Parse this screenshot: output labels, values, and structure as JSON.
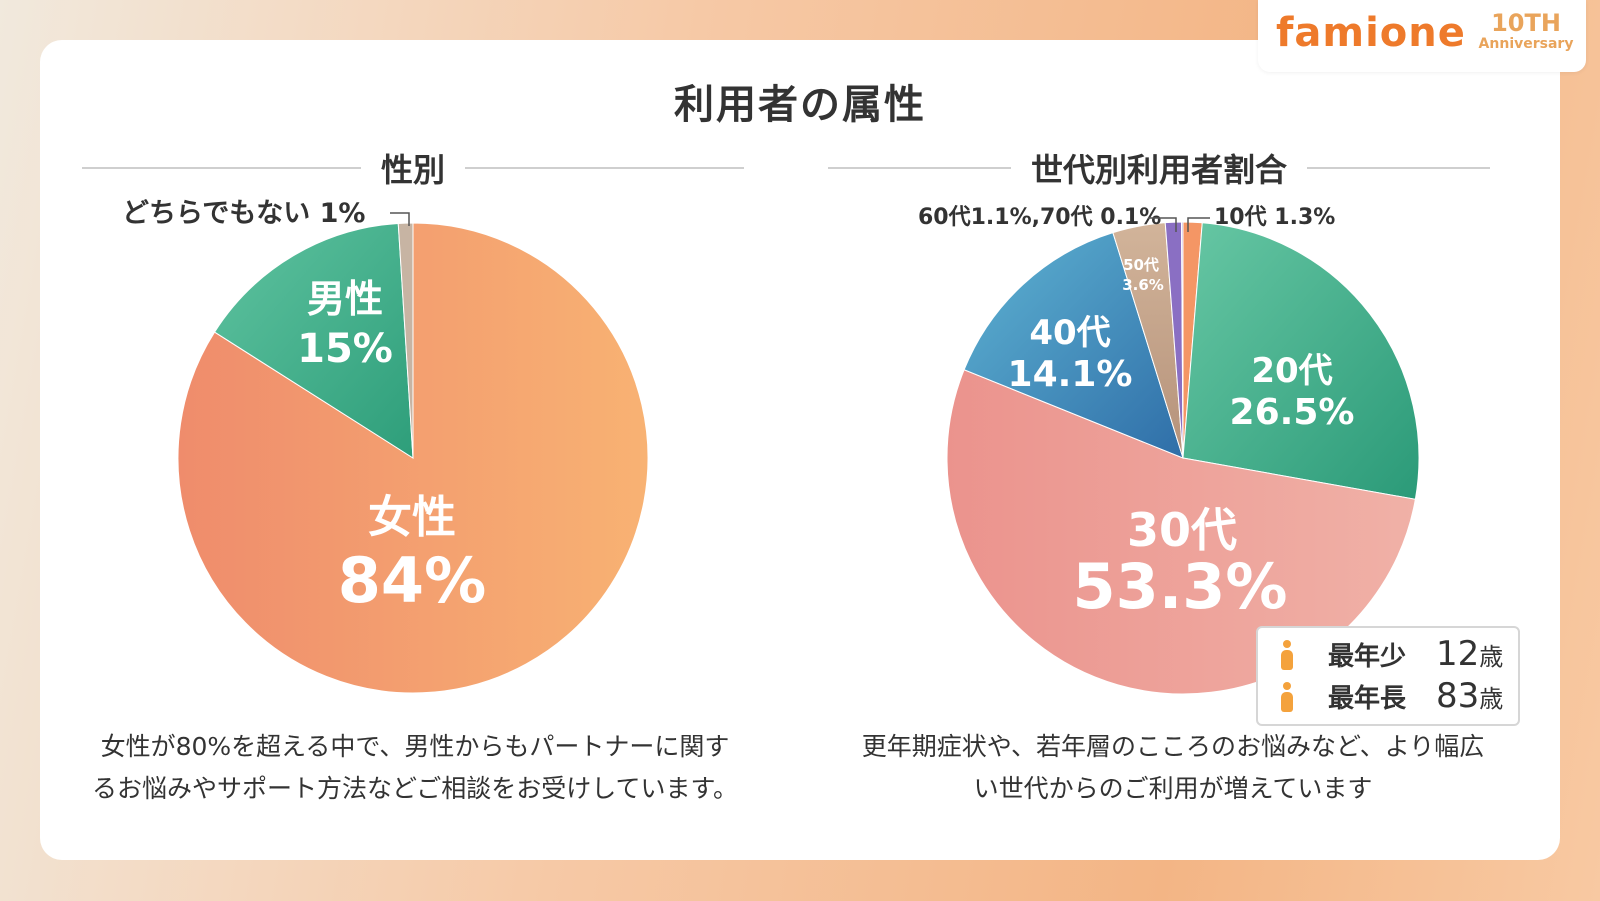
{
  "brand": {
    "logo_text": "famione",
    "anniversary_big": "10TH",
    "anniversary_small": "Anniversary"
  },
  "title": "利用者の属性",
  "left": {
    "heading": "性別",
    "callout": "どちらでもない 1%",
    "slice_labels": [
      {
        "name": "女性",
        "value": "84%"
      },
      {
        "name": "男性",
        "value": "15%"
      }
    ],
    "caption_lines": [
      "女性が80%を超える中で、男性からもパートナーに関す",
      "るお悩みやサポート方法などご相談をお受けしています。"
    ]
  },
  "right": {
    "heading": "世代別利用者割合",
    "callout_left": "60代1.1%,70代 0.1%",
    "callout_right": "10代 1.3%",
    "slice_labels": [
      {
        "name": "20代",
        "value": "26.5%"
      },
      {
        "name": "30代",
        "value": "53.3%"
      },
      {
        "name": "40代",
        "value": "14.1%"
      },
      {
        "name": "50代",
        "value": "3.6%"
      }
    ],
    "age_box": {
      "youngest_label": "最年少",
      "youngest_value": "12",
      "youngest_unit": "歳",
      "oldest_label": "最年長",
      "oldest_value": "83",
      "oldest_unit": "歳"
    },
    "caption_lines": [
      "更年期症状や、若年層のこころのお悩みなど、より幅広",
      "い世代からのご利用が増えています"
    ]
  },
  "colors": {
    "female": "#f4a06d",
    "male": "#44b08a",
    "neither": "#c7b4a3",
    "age_10": "#f49665",
    "age_20": "#3fae8c",
    "age_30": "#ec9a93",
    "age_40": "#3d89b8",
    "age_50": "#c6a68a",
    "age_60": "#8a6fc3",
    "age_70": "#b9a8dd"
  },
  "chart_data": [
    {
      "type": "pie",
      "title": "性別",
      "categories": [
        "女性",
        "男性",
        "どちらでもない"
      ],
      "values": [
        84,
        15,
        1
      ],
      "unit": "%"
    },
    {
      "type": "pie",
      "title": "世代別利用者割合",
      "categories": [
        "10代",
        "20代",
        "30代",
        "40代",
        "50代",
        "60代",
        "70代"
      ],
      "values": [
        1.3,
        26.5,
        53.3,
        14.1,
        3.6,
        1.1,
        0.1
      ],
      "unit": "%"
    }
  ]
}
